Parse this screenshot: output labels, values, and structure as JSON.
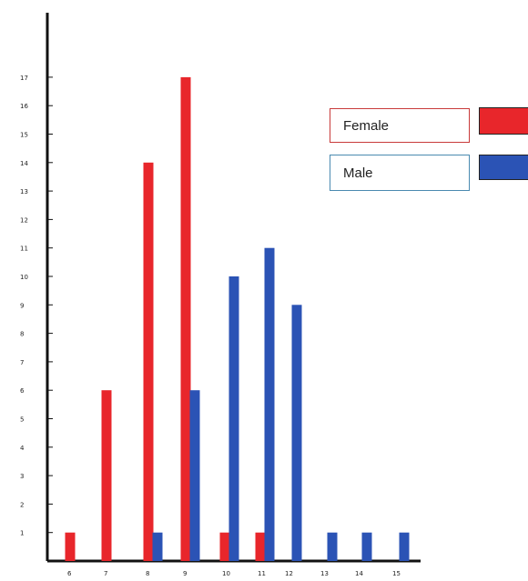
{
  "chart_data": {
    "type": "bar",
    "title": "",
    "xlabel": "",
    "ylabel": "",
    "x_tick_labels": [
      "6",
      "7",
      "8",
      "9",
      "10",
      "11",
      "12",
      "13",
      "14",
      "15"
    ],
    "y_tick_labels": [
      "1",
      "2",
      "3",
      "4",
      "5",
      "6",
      "7",
      "8",
      "9",
      "10",
      "11",
      "12",
      "13",
      "14",
      "15",
      "16",
      "17"
    ],
    "ylim": [
      0,
      17
    ],
    "grid": false,
    "legend_position": "top-right",
    "series": [
      {
        "name": "Female",
        "color": "#e8262b",
        "values": [
          1,
          6,
          14,
          17,
          1,
          1,
          0,
          0,
          0,
          0
        ]
      },
      {
        "name": "Male",
        "color": "#2b53b5",
        "values": [
          0,
          0,
          1,
          6,
          10,
          11,
          9,
          1,
          1,
          1
        ]
      }
    ]
  }
}
